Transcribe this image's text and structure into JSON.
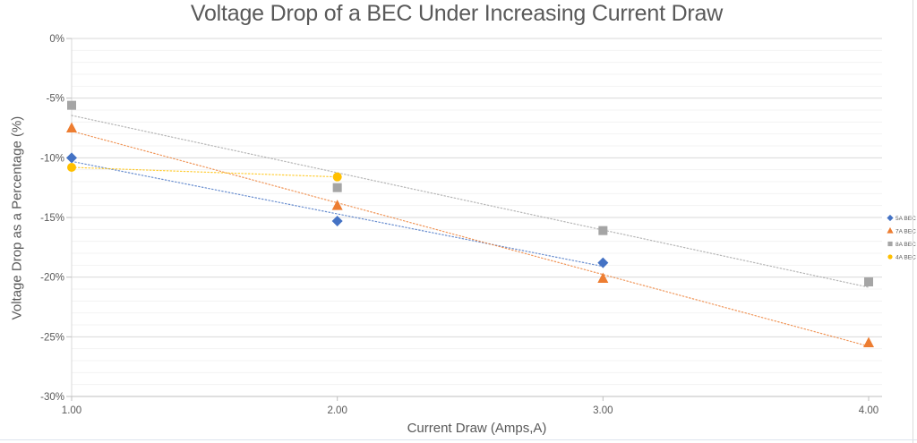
{
  "chart_data": {
    "type": "scatter",
    "title": "Voltage Drop of a BEC Under Increasing Current Draw",
    "xlabel": "Current Draw (Amps,A)",
    "ylabel": "Voltage Drop as a Percentage (%)",
    "xlim": [
      1,
      4
    ],
    "ylim": [
      -30,
      0
    ],
    "x_tick_labels": [
      "1.00",
      "2.00",
      "3.00",
      "4.00"
    ],
    "x_tick_values": [
      1,
      2,
      3,
      4
    ],
    "y_tick_labels": [
      "0%",
      "-5%",
      "-10%",
      "-15%",
      "-20%",
      "-25%",
      "-30%"
    ],
    "y_tick_values": [
      0,
      -5,
      -10,
      -15,
      -20,
      -25,
      -30
    ],
    "grid": "horizontal major every 5% (light gray) + minor every 1% (very faint); single vertical axis line at x=1",
    "legend_position": "right",
    "trendline_style": "dotted linear fit per series over its own x-range",
    "colors": {
      "axis_text": "#595959",
      "major_grid": "#d9d9d9",
      "minor_grid": "#f3f3f3",
      "axis_line": "#bfbfbf"
    },
    "series": [
      {
        "name": "5A BEC",
        "marker": "diamond",
        "color": "#4472C4",
        "x": [
          1,
          2,
          3
        ],
        "y": [
          -10.0,
          -15.3,
          -18.8
        ]
      },
      {
        "name": "7A BEC",
        "marker": "triangle",
        "color": "#ED7D31",
        "x": [
          1,
          2,
          3,
          4
        ],
        "y": [
          -7.5,
          -14.0,
          -20.1,
          -25.5
        ]
      },
      {
        "name": "8A BEC",
        "marker": "square",
        "color": "#A5A5A5",
        "x": [
          1,
          2,
          3,
          4
        ],
        "y": [
          -5.6,
          -12.5,
          -16.1,
          -20.4
        ]
      },
      {
        "name": "4A BEC",
        "marker": "circle",
        "color": "#FFC000",
        "x": [
          1,
          2
        ],
        "y": [
          -10.8,
          -11.6
        ]
      }
    ]
  }
}
